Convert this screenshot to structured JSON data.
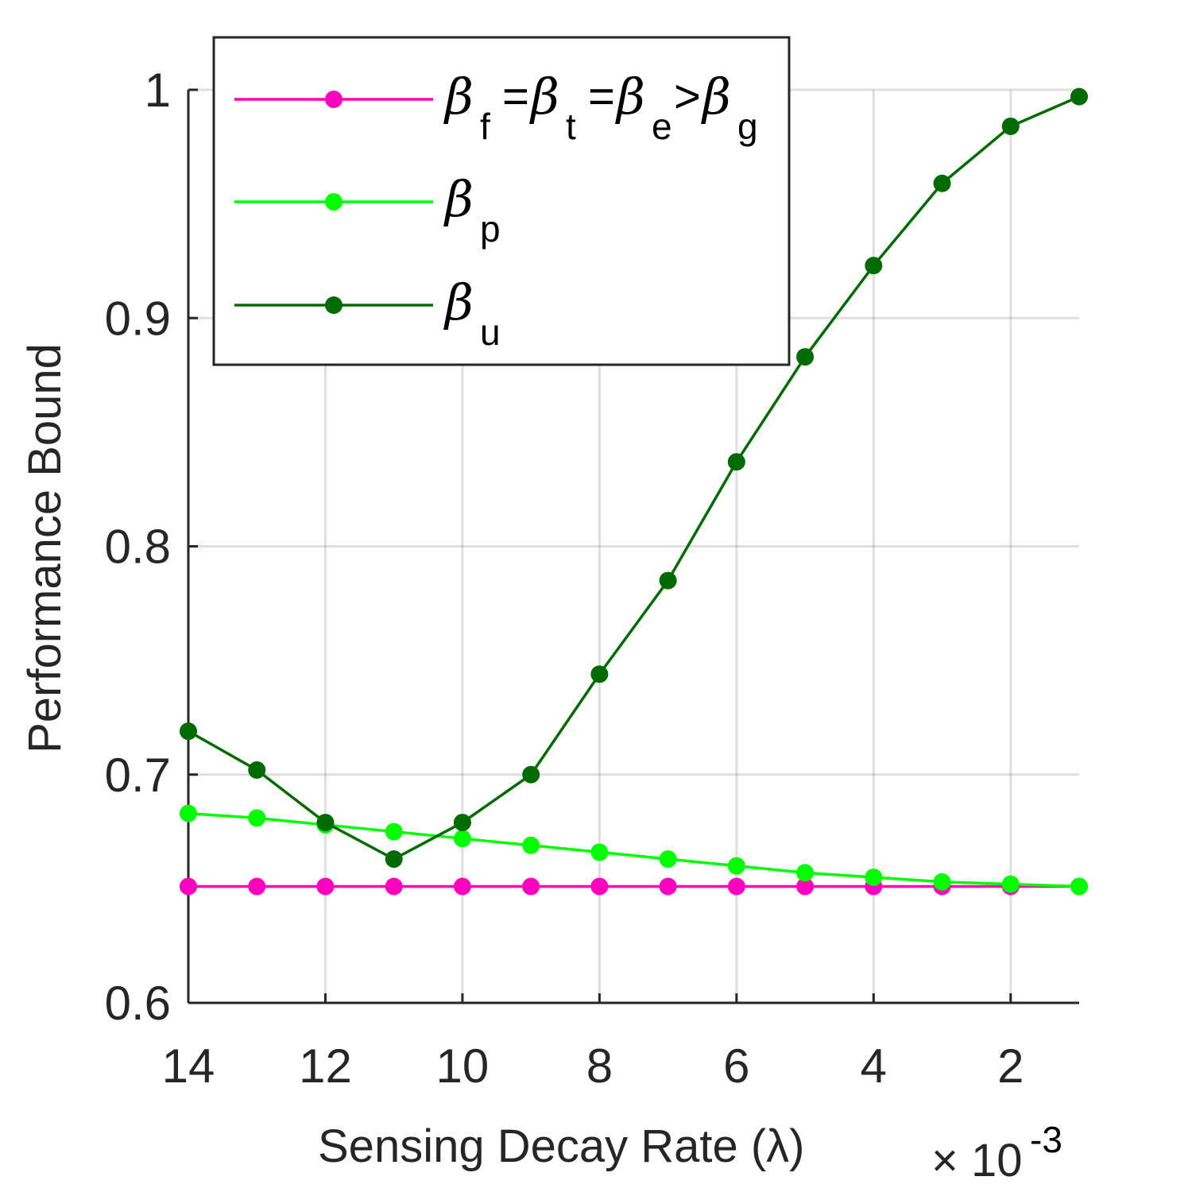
{
  "chart_data": {
    "type": "line",
    "xlabel": "Sensing Decay Rate (λ)",
    "ylabel": "Performance Bound",
    "x_exponent_label": "× 10",
    "x_exponent": "-3",
    "xlim": [
      14,
      1
    ],
    "ylim": [
      0.6,
      1.0
    ],
    "x_reversed": true,
    "grid": true,
    "legend_position": "top-left",
    "x_ticks": [
      14,
      12,
      10,
      8,
      6,
      4,
      2
    ],
    "x_tick_labels": [
      "14",
      "12",
      "10",
      "8",
      "6",
      "4",
      "2"
    ],
    "y_ticks": [
      0.6,
      0.7,
      0.8,
      0.9,
      1.0
    ],
    "y_tick_labels": [
      "0.6",
      "0.7",
      "0.8",
      "0.9",
      "1"
    ],
    "x": [
      14,
      13,
      12,
      11,
      10,
      9,
      8,
      7,
      6,
      5,
      4,
      3,
      2,
      1
    ],
    "series": [
      {
        "id": "fteg",
        "color": "#ff00bf",
        "legend": [
          {
            "sym": "β",
            "sub": "f"
          },
          {
            "op": "="
          },
          {
            "sym": "β",
            "sub": "t"
          },
          {
            "op": "="
          },
          {
            "sym": "β",
            "sub": "e"
          },
          {
            "op": ">"
          },
          {
            "sym": "β",
            "sub": "g"
          }
        ],
        "values": [
          0.651,
          0.651,
          0.651,
          0.651,
          0.651,
          0.651,
          0.651,
          0.651,
          0.651,
          0.651,
          0.651,
          0.651,
          0.651,
          0.651
        ]
      },
      {
        "id": "p",
        "color": "#00ff00",
        "legend": [
          {
            "sym": "β",
            "sub": "p"
          }
        ],
        "values": [
          0.683,
          0.681,
          0.678,
          0.675,
          0.672,
          0.669,
          0.666,
          0.663,
          0.66,
          0.657,
          0.655,
          0.653,
          0.652,
          0.651
        ]
      },
      {
        "id": "u",
        "color": "#006b00",
        "legend": [
          {
            "sym": "β",
            "sub": "u"
          }
        ],
        "values": [
          0.719,
          0.702,
          0.679,
          0.663,
          0.679,
          0.7,
          0.744,
          0.785,
          0.837,
          0.883,
          0.923,
          0.959,
          0.984,
          0.997
        ]
      }
    ]
  }
}
